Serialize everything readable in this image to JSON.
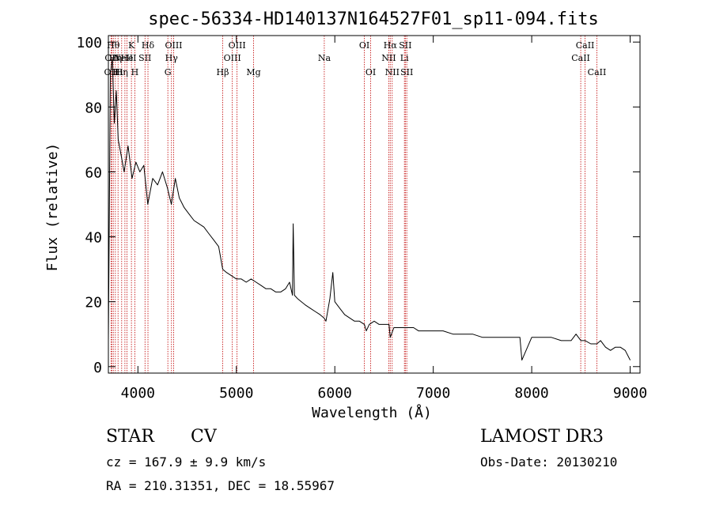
{
  "chart_data": {
    "type": "line",
    "title": "spec-56334-HD140137N164527F01_sp11-094.fits",
    "xlabel": "Wavelength (Å)",
    "ylabel": "Flux (relative)",
    "xlim": [
      3700,
      9100
    ],
    "ylim": [
      -2,
      102
    ],
    "x_ticks": [
      4000,
      5000,
      6000,
      7000,
      8000,
      9000
    ],
    "y_ticks": [
      0,
      20,
      40,
      60,
      80,
      100
    ],
    "grid": false,
    "line_color": "#000000",
    "marker_color": "#c00000",
    "series": [
      {
        "x": [
          3700,
          3720,
          3740,
          3760,
          3780,
          3800,
          3830,
          3860,
          3900,
          3940,
          3980,
          4020,
          4060,
          4100,
          4150,
          4200,
          4250,
          4300,
          4340,
          4380,
          4420,
          4470,
          4520,
          4570,
          4620,
          4670,
          4720,
          4770,
          4820,
          4861,
          4900,
          4950,
          5000,
          5050,
          5100,
          5150,
          5200,
          5250,
          5300,
          5350,
          5400,
          5450,
          5500,
          5540,
          5570,
          5577,
          5590,
          5620,
          5660,
          5700,
          5750,
          5800,
          5850,
          5890,
          5910,
          5950,
          5980,
          6000,
          6050,
          6100,
          6150,
          6200,
          6250,
          6300,
          6320,
          6350,
          6400,
          6450,
          6500,
          6550,
          6563,
          6600,
          6650,
          6700,
          6750,
          6800,
          6850,
          6900,
          6950,
          7000,
          7100,
          7200,
          7300,
          7400,
          7500,
          7600,
          7700,
          7800,
          7880,
          7900,
          8000,
          8100,
          8200,
          8300,
          8400,
          8450,
          8500,
          8542,
          8600,
          8662,
          8700,
          8750,
          8800,
          8850,
          8900,
          8950,
          9000
        ],
        "y": [
          8,
          90,
          95,
          75,
          85,
          70,
          65,
          60,
          68,
          58,
          63,
          60,
          62,
          50,
          58,
          56,
          60,
          55,
          50,
          58,
          52,
          49,
          47,
          45,
          44,
          43,
          41,
          39,
          37,
          30,
          29,
          28,
          27,
          27,
          26,
          27,
          26,
          25,
          24,
          24,
          23,
          23,
          24,
          26,
          22,
          44,
          22,
          21,
          20,
          19,
          18,
          17,
          16,
          15,
          14,
          21,
          29,
          20,
          18,
          16,
          15,
          14,
          14,
          13,
          11,
          13,
          14,
          13,
          13,
          13,
          9,
          12,
          12,
          12,
          12,
          12,
          11,
          11,
          11,
          11,
          11,
          10,
          10,
          10,
          9,
          9,
          9,
          9,
          9,
          2,
          9,
          9,
          9,
          8,
          8,
          10,
          8,
          8,
          7,
          7,
          8,
          6,
          5,
          6,
          6,
          5,
          2
        ]
      }
    ],
    "line_markers": [
      {
        "x": 3727,
        "label": "OII",
        "row": 3
      },
      {
        "x": 3734,
        "label": "OII",
        "row": 2
      },
      {
        "x": 3750,
        "label": "Hθ",
        "row": 1
      },
      {
        "x": 3771,
        "label": "Hη",
        "row": 2
      },
      {
        "x": 3798,
        "label": "Hι",
        "row": 3
      },
      {
        "x": 3835,
        "label": "Hη",
        "row": 3
      },
      {
        "x": 3868,
        "label": "NeIII",
        "row": 2
      },
      {
        "x": 3889,
        "label": "He",
        "row": 2
      },
      {
        "x": 3934,
        "label": "K",
        "row": 1
      },
      {
        "x": 3969,
        "label": "H",
        "row": 3
      },
      {
        "x": 4072,
        "label": "SII",
        "row": 2
      },
      {
        "x": 4102,
        "label": "Hδ",
        "row": 1
      },
      {
        "x": 4304,
        "label": "G",
        "row": 3
      },
      {
        "x": 4341,
        "label": "Hγ",
        "row": 2
      },
      {
        "x": 4363,
        "label": "OIII",
        "row": 1
      },
      {
        "x": 4861,
        "label": "Hβ",
        "row": 3
      },
      {
        "x": 4959,
        "label": "OIII",
        "row": 2
      },
      {
        "x": 5007,
        "label": "OIII",
        "row": 1
      },
      {
        "x": 5175,
        "label": "Mg",
        "row": 3
      },
      {
        "x": 5893,
        "label": "Na",
        "row": 2
      },
      {
        "x": 6300,
        "label": "OI",
        "row": 1
      },
      {
        "x": 6364,
        "label": "OI",
        "row": 3
      },
      {
        "x": 6548,
        "label": "NII",
        "row": 2
      },
      {
        "x": 6563,
        "label": "Hα",
        "row": 1
      },
      {
        "x": 6583,
        "label": "NII",
        "row": 3
      },
      {
        "x": 6707,
        "label": "Li",
        "row": 2
      },
      {
        "x": 6716,
        "label": "SII",
        "row": 1
      },
      {
        "x": 6731,
        "label": "SII",
        "row": 3
      },
      {
        "x": 8498,
        "label": "CaII",
        "row": 2
      },
      {
        "x": 8542,
        "label": "CaII",
        "row": 1
      },
      {
        "x": 8662,
        "label": "CaII",
        "row": 3
      }
    ]
  },
  "info": {
    "object_class": "STAR",
    "subclass": "CV",
    "cz": "cz = 167.9 ± 9.9 km/s",
    "coords": "RA = 210.31351, DEC =  18.55967",
    "survey": "LAMOST DR3",
    "obs_date": "Obs-Date: 20130210"
  }
}
